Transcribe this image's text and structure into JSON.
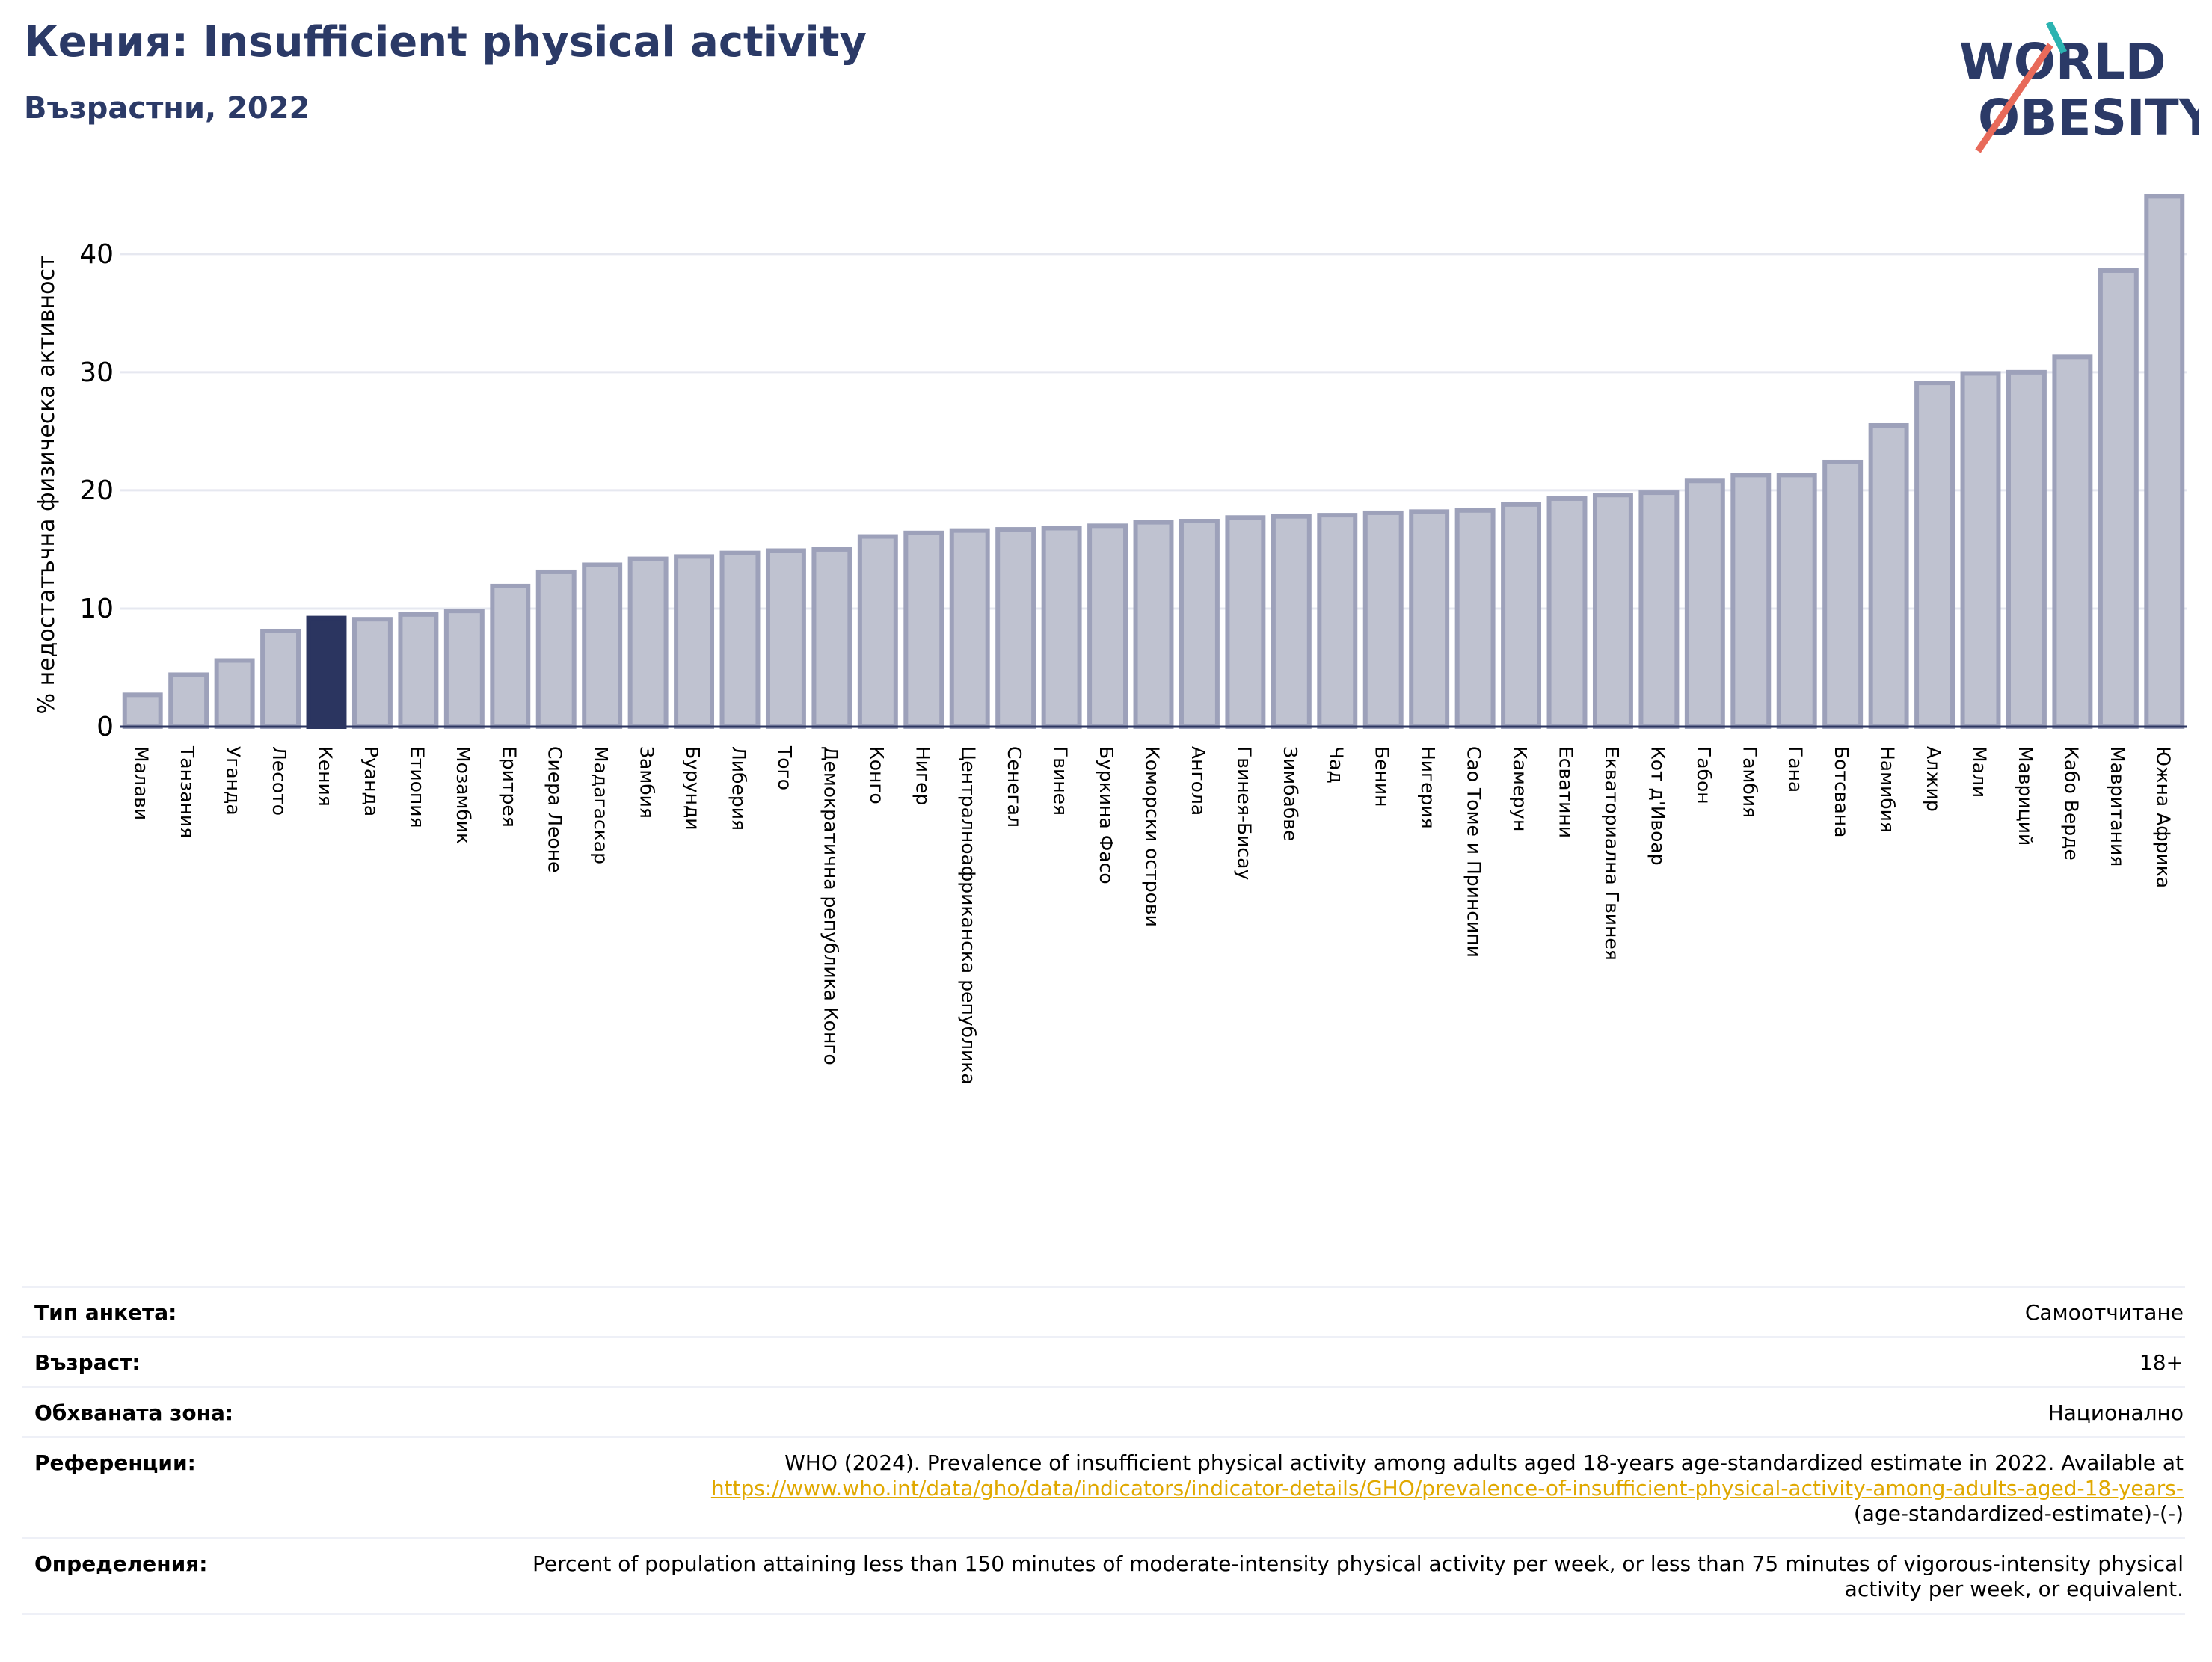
{
  "header": {
    "title": "Кения: Insufficient physical activity",
    "subtitle": "Възрастни, 2022"
  },
  "logo": {
    "line1": "WORLD",
    "line2": "OBESITY",
    "name": "world-obesity-logo"
  },
  "colors": {
    "highlight": "#2b3560",
    "bar_fill": "#bfc2d0",
    "bar_stroke": "#9da1ba",
    "title": "#2b3a67",
    "link": "#e0a800"
  },
  "chart_data": {
    "type": "bar",
    "title": "",
    "xlabel": "",
    "ylabel": "% недостатъчна физическа активност",
    "ylim": [
      0,
      46
    ],
    "yticks": [
      0,
      10,
      20,
      30,
      40
    ],
    "grid": true,
    "highlight_category": "Кения",
    "categories": [
      "Малави",
      "Танзания",
      "Уганда",
      "Лесото",
      "Кения",
      "Руанда",
      "Етиопия",
      "Мозамбик",
      "Еритрея",
      "Сиера Леоне",
      "Мадагаскар",
      "Замбия",
      "Бурунди",
      "Либерия",
      "Того",
      "Демократична република Конго",
      "Конго",
      "Нигер",
      "Централноафриканска република",
      "Сенегал",
      "Гвинея",
      "Буркина Фасо",
      "Коморски острови",
      "Ангола",
      "Гвинея-Бисау",
      "Зимбабве",
      "Чад",
      "Бенин",
      "Нигерия",
      "Сао Томе и Принсипи",
      "Камерун",
      "Есватини",
      "Екваториална Гвинея",
      "Кот д'Ивоар",
      "Габон",
      "Гамбия",
      "Гана",
      "Ботсвана",
      "Намибия",
      "Алжир",
      "Мали",
      "Мавриций",
      "Кабо Верде",
      "Мавритания",
      "Южна Африка"
    ],
    "values": [
      2.7,
      4.4,
      5.6,
      8.1,
      9.2,
      9.1,
      9.5,
      9.8,
      11.9,
      13.1,
      13.7,
      14.2,
      14.4,
      14.7,
      14.9,
      15.0,
      16.1,
      16.4,
      16.6,
      16.7,
      16.8,
      17.0,
      17.3,
      17.4,
      17.7,
      17.8,
      17.9,
      18.1,
      18.2,
      18.3,
      18.8,
      19.3,
      19.6,
      19.8,
      20.8,
      21.3,
      21.3,
      22.4,
      25.5,
      29.1,
      29.9,
      30.0,
      31.3,
      38.6,
      44.9
    ]
  },
  "info": [
    {
      "key": "Тип анкета:",
      "value": "Самоотчитане"
    },
    {
      "key": "Възраст:",
      "value": "18+"
    },
    {
      "key": "Обхваната зона:",
      "value": "Национално"
    },
    {
      "key": "Референции:",
      "value": "WHO (2024). Prevalence of insufficient physical activity among adults aged 18-years age-standardized estimate in 2022. Available at",
      "link": "https://www.who.int/data/gho/data/indicators/indicator-details/GHO/prevalence-of-insufficient-physical-activity-among-adults-aged-18-years-",
      "value_after": "(age-standardized-estimate)-(-)"
    },
    {
      "key": "Определения:",
      "value": "Percent of population attaining less than 150 minutes of moderate-intensity physical activity per week, or less than 75 minutes of vigorous-intensity physical activity per week, or equivalent."
    }
  ]
}
